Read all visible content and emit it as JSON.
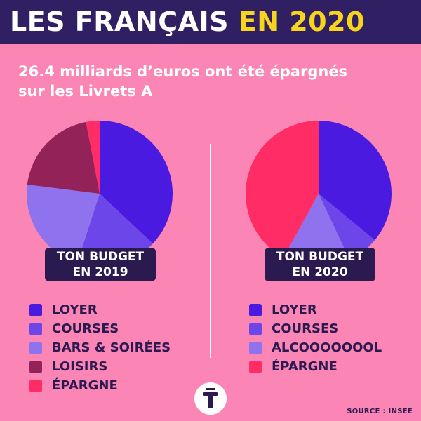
{
  "header": {
    "title_part1": "LES FRANÇAIS",
    "title_part2": "EN 2020"
  },
  "subtitle": "26.4 milliards d’euros ont été épargnés sur les Livrets A",
  "source": "SOURCE : INSEE",
  "colors": {
    "background": "#fb85b5",
    "header_bg": "#311f63",
    "title_accent": "#f7d51d",
    "badge_bg": "#2a1a50",
    "loyer": "#4a1ae0",
    "courses": "#6c46e8",
    "bars_alcool": "#8f73ee",
    "loisirs": "#922257",
    "epargne": "#ff2c66"
  },
  "logo": {
    "icon": "t-logo-icon"
  },
  "chart_data": [
    {
      "type": "pie",
      "badge_line1": "TON BUDGET",
      "badge_line2": "EN 2019",
      "slices": [
        {
          "label": "LOYER",
          "value": 37,
          "color": "#4a1ae0"
        },
        {
          "label": "COURSES",
          "value": 18,
          "color": "#6c46e8"
        },
        {
          "label": "BARS & SOIRÉES",
          "value": 22,
          "color": "#8f73ee"
        },
        {
          "label": "LOISIRS",
          "value": 20,
          "color": "#922257"
        },
        {
          "label": "ÉPARGNE",
          "value": 3,
          "color": "#ff2c66"
        }
      ]
    },
    {
      "type": "pie",
      "badge_line1": "TON BUDGET",
      "badge_line2": "EN 2020",
      "slices": [
        {
          "label": "LOYER",
          "value": 36,
          "color": "#4a1ae0"
        },
        {
          "label": "COURSES",
          "value": 7,
          "color": "#6c46e8"
        },
        {
          "label": "ALCOOOOOOOL",
          "value": 15,
          "color": "#8f73ee"
        },
        {
          "label": "ÉPARGNE",
          "value": 42,
          "color": "#ff2c66"
        }
      ]
    }
  ]
}
